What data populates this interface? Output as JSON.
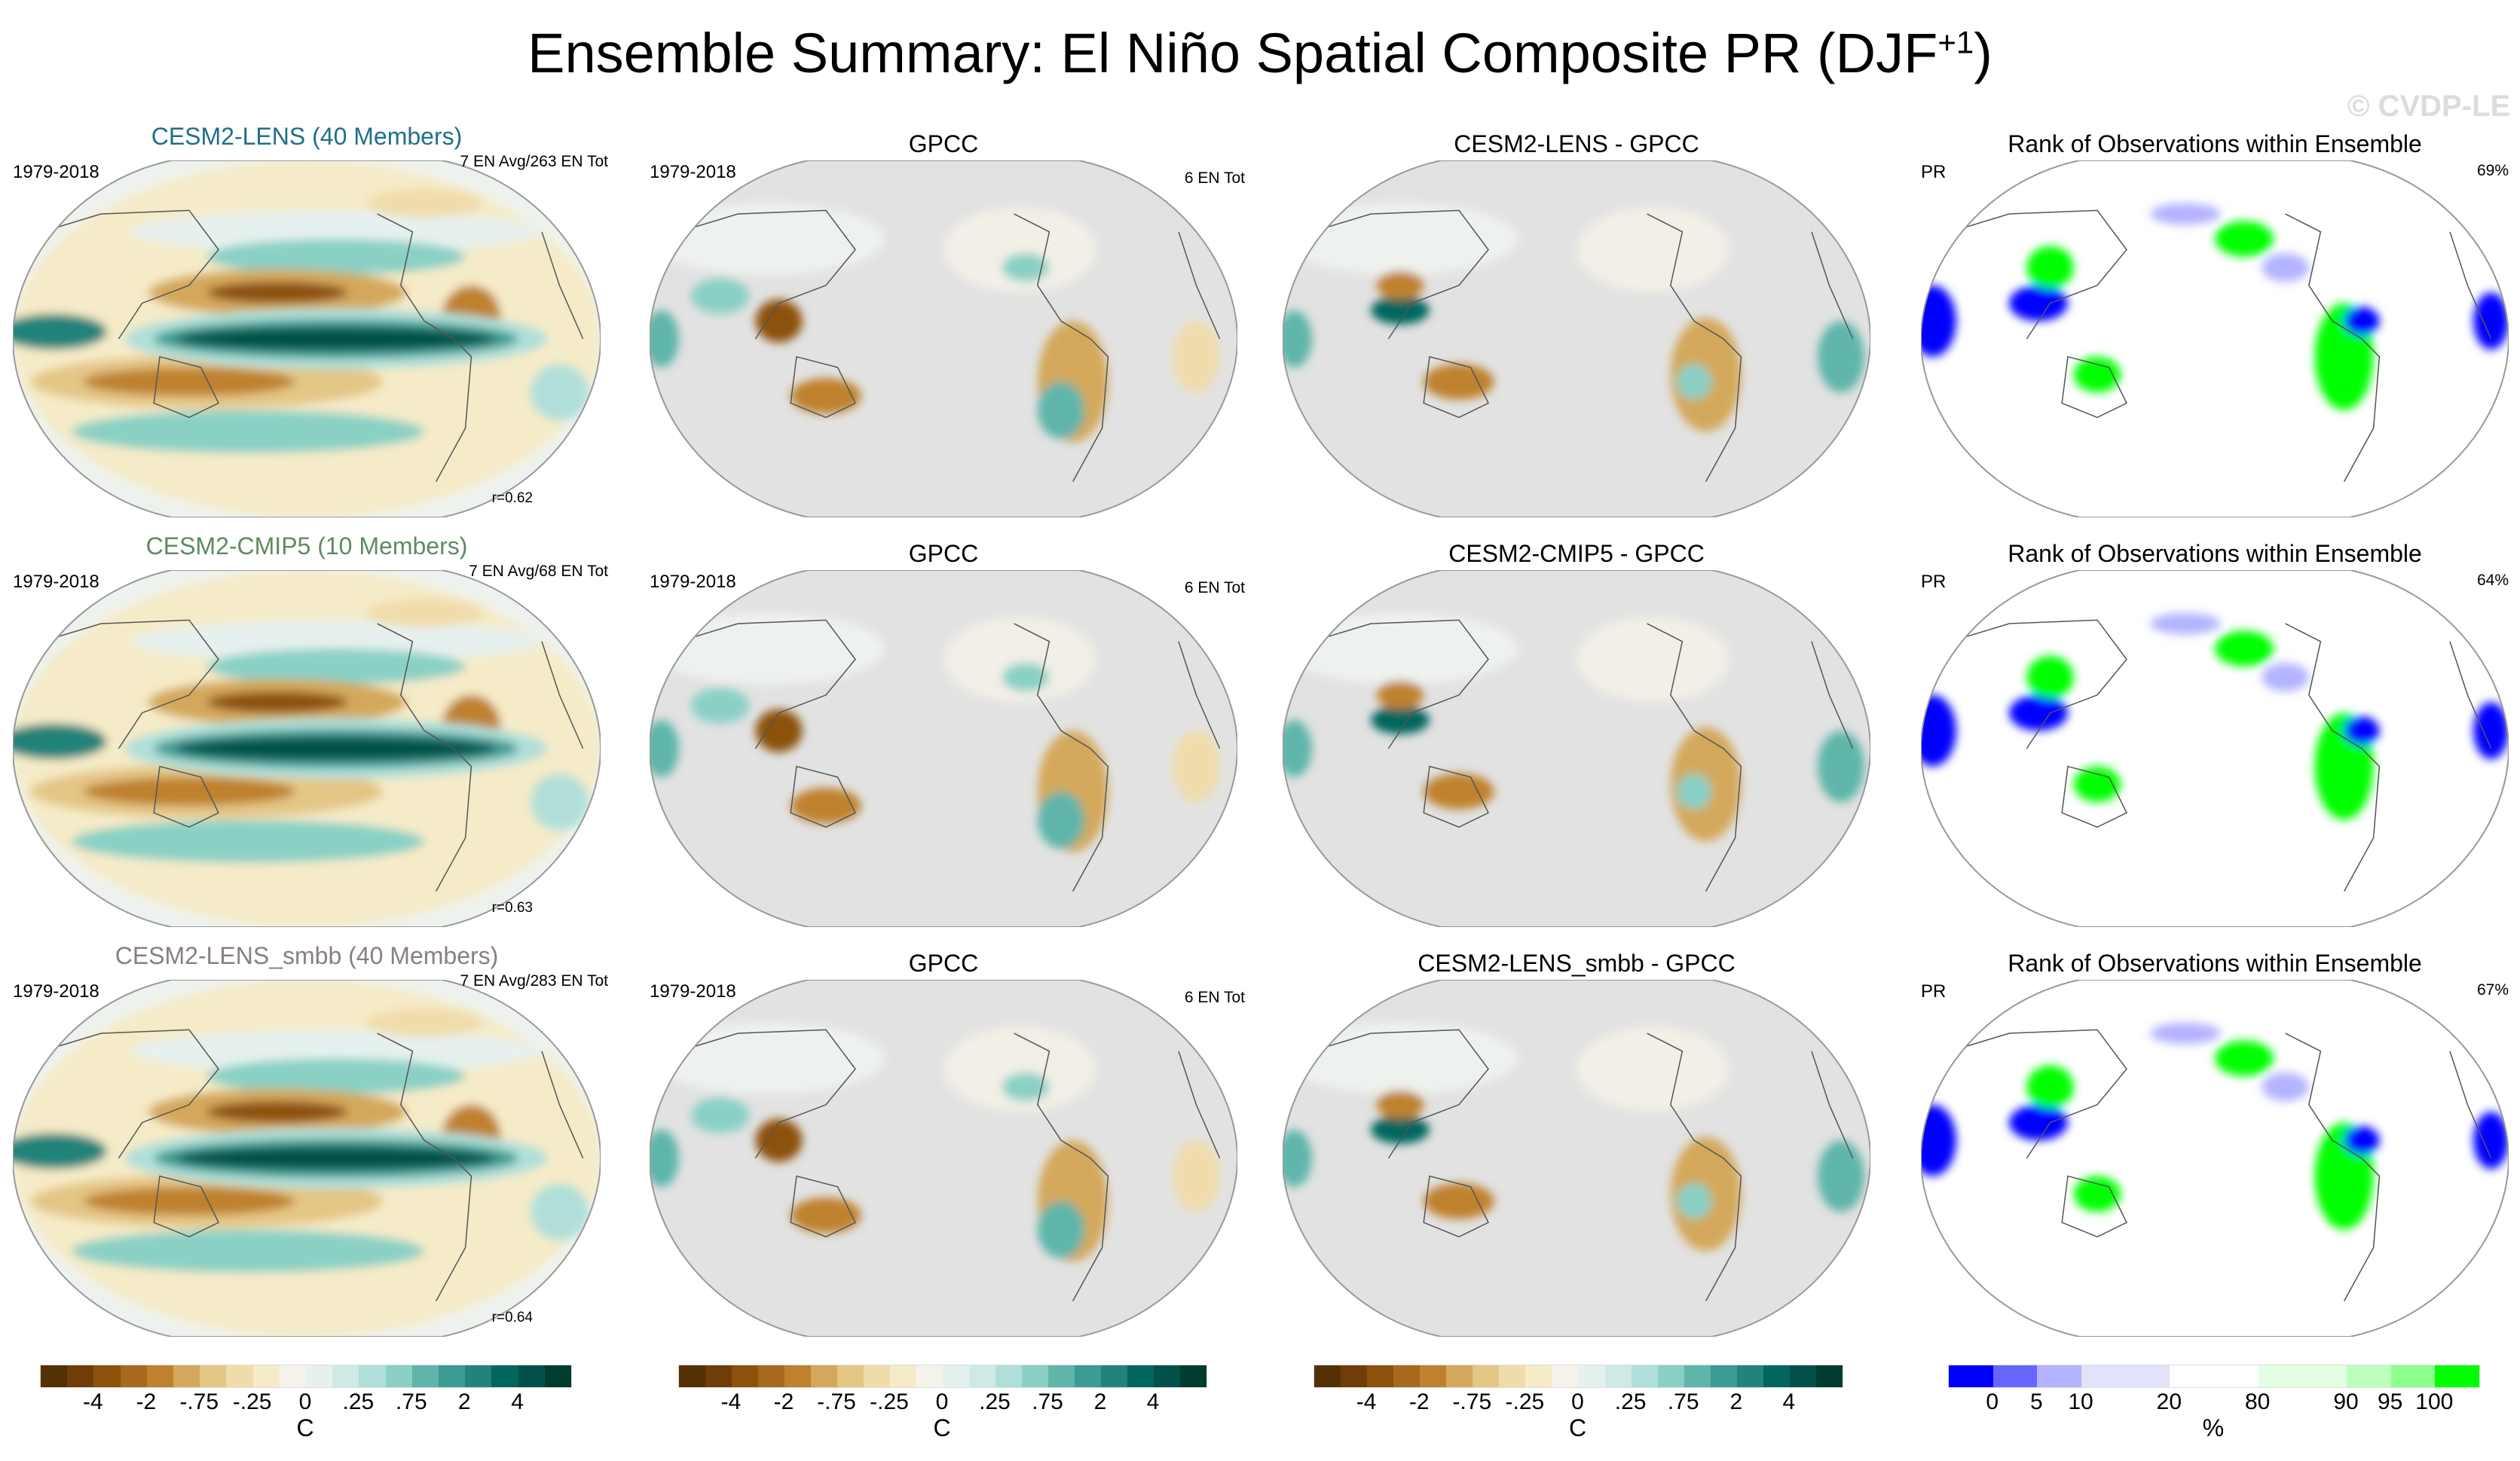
{
  "title": {
    "text": "Ensemble Summary: El Niño Spatial Composite PR (DJF",
    "sup": "+1",
    "close": ")"
  },
  "watermark": "© CVDP-LE",
  "colors": {
    "lens": "#1f6f8b",
    "cmip5": "#5f8a63",
    "smbb": "#8a7f7f"
  },
  "chart_data": {
    "type": "heatmap",
    "title": "Ensemble Summary: El Niño Spatial Composite PR (DJF+1)",
    "panels": [
      {
        "kind": "model",
        "title": "CESM2-LENS (40 Members)",
        "color_key": "lens",
        "left": "1979-2018",
        "right": "7 EN Avg/263 EN Tot",
        "r": "r=0.62"
      },
      {
        "kind": "obs",
        "title": "GPCC",
        "left": "1979-2018",
        "right": "6 EN Tot"
      },
      {
        "kind": "diff",
        "title": "CESM2-LENS - GPCC"
      },
      {
        "kind": "rank",
        "title": "Rank of Observations within Ensemble",
        "left": "PR",
        "right": "69%"
      },
      {
        "kind": "model",
        "title": "CESM2-CMIP5 (10 Members)",
        "color_key": "cmip5",
        "left": "1979-2018",
        "right": "7 EN Avg/68 EN Tot",
        "r": "r=0.63"
      },
      {
        "kind": "obs",
        "title": "GPCC",
        "left": "1979-2018",
        "right": "6 EN Tot"
      },
      {
        "kind": "diff",
        "title": "CESM2-CMIP5 - GPCC"
      },
      {
        "kind": "rank",
        "title": "Rank of Observations within Ensemble",
        "left": "PR",
        "right": "64%"
      },
      {
        "kind": "model",
        "title": "CESM2-LENS_smbb (40 Members)",
        "color_key": "smbb",
        "left": "1979-2018",
        "right": "7 EN Avg/283 EN Tot",
        "r": "r=0.64"
      },
      {
        "kind": "obs",
        "title": "GPCC",
        "left": "1979-2018",
        "right": "6 EN Tot"
      },
      {
        "kind": "diff",
        "title": "CESM2-LENS_smbb - GPCC"
      },
      {
        "kind": "rank",
        "title": "Rank of Observations within Ensemble",
        "left": "PR",
        "right": "67%"
      }
    ],
    "colorbars": [
      {
        "kind": "anom",
        "labels": [
          "-4",
          "-2",
          "-.75",
          "-.25",
          "0",
          ".25",
          ".75",
          "2",
          "4"
        ],
        "unit": "C",
        "colors": [
          "#543005",
          "#6f3d07",
          "#8c510a",
          "#a6691e",
          "#bf812d",
          "#d4a85c",
          "#e4c685",
          "#f0dcab",
          "#f6ebc8",
          "#f5f2eb",
          "#e6f1ef",
          "#cfeae6",
          "#b0dfd9",
          "#8ad0c5",
          "#5fb5aa",
          "#3c9b92",
          "#22837a",
          "#01665e",
          "#01514a",
          "#003c30"
        ]
      },
      {
        "kind": "anom",
        "labels": [
          "-4",
          "-2",
          "-.75",
          "-.25",
          "0",
          ".25",
          ".75",
          "2",
          "4"
        ],
        "unit": "C",
        "colors": [
          "#543005",
          "#6f3d07",
          "#8c510a",
          "#a6691e",
          "#bf812d",
          "#d4a85c",
          "#e4c685",
          "#f0dcab",
          "#f6ebc8",
          "#f5f2eb",
          "#e6f1ef",
          "#cfeae6",
          "#b0dfd9",
          "#8ad0c5",
          "#5fb5aa",
          "#3c9b92",
          "#22837a",
          "#01665e",
          "#01514a",
          "#003c30"
        ]
      },
      {
        "kind": "anom",
        "labels": [
          "-4",
          "-2",
          "-.75",
          "-.25",
          "0",
          ".25",
          ".75",
          "2",
          "4"
        ],
        "unit": "C",
        "colors": [
          "#543005",
          "#6f3d07",
          "#8c510a",
          "#a6691e",
          "#bf812d",
          "#d4a85c",
          "#e4c685",
          "#f0dcab",
          "#f6ebc8",
          "#f5f2eb",
          "#e6f1ef",
          "#cfeae6",
          "#b0dfd9",
          "#8ad0c5",
          "#5fb5aa",
          "#3c9b92",
          "#22837a",
          "#01665e",
          "#01514a",
          "#003c30"
        ]
      },
      {
        "kind": "rank",
        "labels": [
          "0",
          "5",
          "10",
          "20",
          "80",
          "90",
          "95",
          "100"
        ],
        "unit": "%",
        "boundaries": [
          0,
          5,
          10,
          20,
          80,
          90,
          95,
          100
        ],
        "colors": [
          "#0000ff",
          "#6666ff",
          "#b3b3ff",
          "#e3e3fc",
          "#ffffff",
          "#e3fde3",
          "#bdffbd",
          "#8cff8c",
          "#00ff00"
        ]
      }
    ]
  }
}
